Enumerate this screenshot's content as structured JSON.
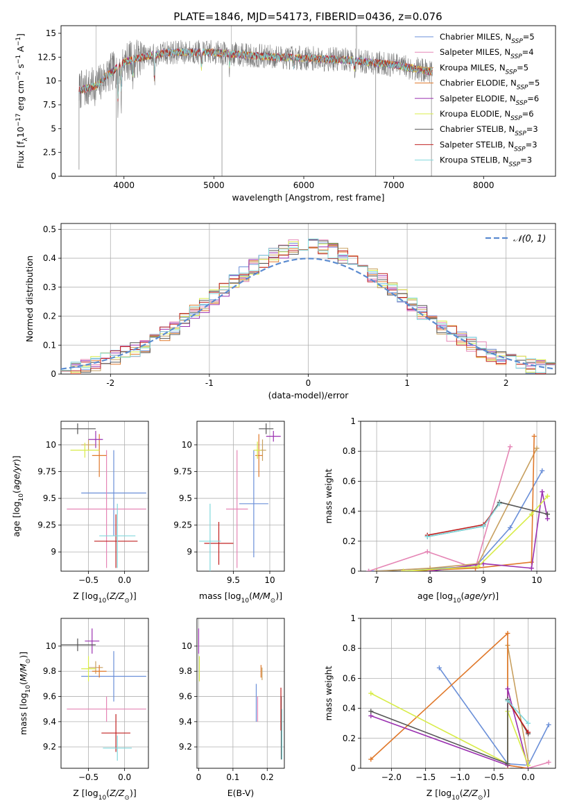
{
  "figure": {
    "title": "PLATE=1846, MJD=54173, FIBERID=0436, z=0.076"
  },
  "legend": {
    "entries": [
      "Chabrier MILES, N_SSP=5",
      "Salpeter MILES, N_SSP=4",
      "Kroupa MILES, N_SSP=5",
      "Chabrier ELODIE, N_SSP=5",
      "Salpeter ELODIE, N_SSP=6",
      "Kroupa ELODIE, N_SSP=6",
      "Chabrier STELIB, N_SSP=3",
      "Salpeter STELIB, N_SSP=3",
      "Kroupa STELIB, N_SSP=3"
    ],
    "models": [
      {
        "imf": "Chabrier",
        "lib": "MILES",
        "n": "5",
        "color": "#6a8fd8"
      },
      {
        "imf": "Salpeter",
        "lib": "MILES",
        "n": "4",
        "color": "#e585b5"
      },
      {
        "imf": "Kroupa",
        "lib": "MILES",
        "n": "5",
        "color": "#c8a060"
      },
      {
        "imf": "Chabrier",
        "lib": "ELODIE",
        "n": "5",
        "color": "#e0782a"
      },
      {
        "imf": "Salpeter",
        "lib": "ELODIE",
        "n": "6",
        "color": "#9a30b0"
      },
      {
        "imf": "Kroupa",
        "lib": "ELODIE",
        "n": "6",
        "color": "#d8ec48"
      },
      {
        "imf": "Chabrier",
        "lib": "STELIB",
        "n": "3",
        "color": "#555555"
      },
      {
        "imf": "Salpeter",
        "lib": "STELIB",
        "n": "3",
        "color": "#c02020"
      },
      {
        "imf": "Kroupa",
        "lib": "STELIB",
        "n": "3",
        "color": "#80d8dc"
      }
    ],
    "normal_label": "𝒩(0, 1)",
    "normal_color": "#5b8bd0"
  },
  "chart_data": [
    {
      "type": "line",
      "id": "spectrum",
      "xlabel": "wavelength [Angstrom, rest frame]",
      "ylabel": "Flux [f_λ 10^-17 erg cm^-2 s^-1 A^-1]",
      "xlim": [
        3300,
        8800
      ],
      "ylim": [
        0,
        15.8
      ],
      "xticks": [
        4000,
        5000,
        6000,
        7000,
        8000
      ],
      "yticks": [
        0.0,
        2.5,
        5.0,
        7.5,
        10.0,
        12.5,
        15.0
      ],
      "grid": false,
      "legend_position": "upper right",
      "data_range_x": [
        3500,
        7430
      ],
      "continuum": [
        [
          3500,
          9.0
        ],
        [
          3700,
          9.5
        ],
        [
          3800,
          10.5
        ],
        [
          3900,
          11.2
        ],
        [
          4000,
          12.0
        ],
        [
          4200,
          12.5
        ],
        [
          4500,
          13.0
        ],
        [
          5000,
          13.0
        ],
        [
          5500,
          12.6
        ],
        [
          6000,
          12.4
        ],
        [
          6500,
          12.2
        ],
        [
          7000,
          11.7
        ],
        [
          7400,
          11.0
        ]
      ]
    },
    {
      "type": "histogram",
      "id": "residuals",
      "xlabel": "(data-model)/error",
      "ylabel": "Normed distribution",
      "xlim": [
        -2.5,
        2.5
      ],
      "ylim": [
        0,
        0.52
      ],
      "xticks": [
        -2,
        -1,
        0,
        1,
        2
      ],
      "yticks": [
        0.0,
        0.1,
        0.2,
        0.3,
        0.4,
        0.5
      ],
      "grid": true,
      "legend_position": "upper right",
      "bin_width": 0.1,
      "curve": "normal(0,1) pdf"
    },
    {
      "type": "errorbar",
      "id": "age-vs-Z",
      "xlabel": "Z [log10(Z/Z⊙)]",
      "ylabel": "age  [log10(age/yr)]",
      "xlim": [
        -0.88,
        0.33
      ],
      "ylim": [
        8.82,
        10.22
      ],
      "xticks": [
        -0.5,
        0.0
      ],
      "xticklabels": [
        "−0.5",
        "0.0"
      ],
      "yticks": [
        9.0,
        9.25,
        9.5,
        9.75,
        10.0
      ],
      "grid": true,
      "points": [
        {
          "model": 0,
          "x": -0.15,
          "xerr": 0.45,
          "y": 9.55,
          "yerr": 0.4
        },
        {
          "model": 1,
          "x": -0.25,
          "xerr": 0.55,
          "y": 9.4,
          "yerr": 0.55
        },
        {
          "model": 2,
          "x": -0.5,
          "xerr": 0.1,
          "y": 10.0,
          "yerr": 0.05
        },
        {
          "model": 3,
          "x": -0.35,
          "xerr": 0.1,
          "y": 9.9,
          "yerr": 0.2
        },
        {
          "model": 4,
          "x": -0.4,
          "xerr": 0.1,
          "y": 10.05,
          "yerr": 0.08
        },
        {
          "model": 5,
          "x": -0.55,
          "xerr": 0.2,
          "y": 9.95,
          "yerr": 0.07
        },
        {
          "model": 6,
          "x": -0.65,
          "xerr": 0.25,
          "y": 10.15,
          "yerr": 0.05
        },
        {
          "model": 7,
          "x": -0.12,
          "xerr": 0.3,
          "y": 9.1,
          "yerr": 0.25
        },
        {
          "model": 8,
          "x": -0.1,
          "xerr": 0.25,
          "y": 9.15,
          "yerr": 0.3
        }
      ]
    },
    {
      "type": "errorbar",
      "id": "age-vs-mass",
      "xlabel": "mass [log10(M/M⊙)]",
      "ylabel": "",
      "xlim": [
        9.0,
        10.2
      ],
      "ylim": [
        8.82,
        10.22
      ],
      "xticks": [
        9.5,
        10.0
      ],
      "yticks": [
        9.0,
        9.25,
        9.5,
        9.75,
        10.0
      ],
      "grid": true,
      "points": [
        {
          "model": 0,
          "x": 9.78,
          "xerr": 0.2,
          "y": 9.45,
          "yerr": 0.5
        },
        {
          "model": 1,
          "x": 9.55,
          "xerr": 0.15,
          "y": 9.4,
          "yerr": 0.55
        },
        {
          "model": 2,
          "x": 9.9,
          "xerr": 0.05,
          "y": 9.95,
          "yerr": 0.1
        },
        {
          "model": 3,
          "x": 9.85,
          "xerr": 0.05,
          "y": 9.9,
          "yerr": 0.2
        },
        {
          "model": 4,
          "x": 10.05,
          "xerr": 0.1,
          "y": 10.08,
          "yerr": 0.05
        },
        {
          "model": 5,
          "x": 9.83,
          "xerr": 0.05,
          "y": 9.95,
          "yerr": 0.08
        },
        {
          "model": 6,
          "x": 9.95,
          "xerr": 0.1,
          "y": 10.15,
          "yerr": 0.05
        },
        {
          "model": 7,
          "x": 9.3,
          "xerr": 0.2,
          "y": 9.08,
          "yerr": 0.2
        },
        {
          "model": 8,
          "x": 9.18,
          "xerr": 0.15,
          "y": 9.1,
          "yerr": 0.35
        }
      ]
    },
    {
      "type": "line",
      "id": "mass-weight-vs-age",
      "xlabel": "age  [log10(age/yr)]",
      "ylabel": "mass weight",
      "xlim": [
        6.7,
        10.35
      ],
      "ylim": [
        0,
        1.0
      ],
      "xticks": [
        7,
        8,
        9,
        10
      ],
      "yticks": [
        0.0,
        0.2,
        0.4,
        0.6,
        0.8,
        1.0
      ],
      "grid": true,
      "series": [
        {
          "model": 0,
          "x": [
            6.85,
            8.85,
            9.5,
            10.1
          ],
          "y": [
            0.0,
            0.03,
            0.29,
            0.67
          ]
        },
        {
          "model": 1,
          "x": [
            6.85,
            7.95,
            8.85,
            9.5
          ],
          "y": [
            0.0,
            0.13,
            0.02,
            0.83
          ]
        },
        {
          "model": 2,
          "x": [
            7.0,
            8.0,
            8.9,
            10.0
          ],
          "y": [
            0.0,
            0.02,
            0.05,
            0.82
          ]
        },
        {
          "model": 3,
          "x": [
            7.5,
            8.85,
            9.9,
            9.95
          ],
          "y": [
            0.0,
            0.02,
            0.06,
            0.9
          ]
        },
        {
          "model": 4,
          "x": [
            8.0,
            9.0,
            9.9,
            10.1,
            10.2
          ],
          "y": [
            0.0,
            0.05,
            0.02,
            0.53,
            0.35
          ]
        },
        {
          "model": 5,
          "x": [
            7.5,
            8.9,
            9.9,
            10.2
          ],
          "y": [
            0.0,
            0.03,
            0.38,
            0.5
          ]
        },
        {
          "model": 6,
          "x": [
            7.95,
            9.0,
            9.3,
            10.2
          ],
          "y": [
            0.23,
            0.3,
            0.46,
            0.38
          ]
        },
        {
          "model": 7,
          "x": [
            7.95,
            9.0,
            9.3
          ],
          "y": [
            0.24,
            0.31,
            0.45
          ]
        },
        {
          "model": 8,
          "x": [
            7.95,
            9.0,
            9.3
          ],
          "y": [
            0.23,
            0.3,
            0.45
          ]
        }
      ]
    },
    {
      "type": "errorbar",
      "id": "mass-vs-Z",
      "xlabel": "Z [log10(Z/Z⊙)]",
      "ylabel": "mass [log10(M/M⊙)]",
      "xlim": [
        -0.88,
        0.33
      ],
      "ylim": [
        9.03,
        10.22
      ],
      "xticks": [
        -0.5,
        0.0
      ],
      "xticklabels": [
        "−0.5",
        "0.0"
      ],
      "yticks": [
        9.2,
        9.4,
        9.6,
        9.8,
        10.0
      ],
      "grid": true,
      "points": [
        {
          "model": 0,
          "x": -0.15,
          "xerr": 0.45,
          "y": 9.76,
          "yerr": 0.2
        },
        {
          "model": 1,
          "x": -0.25,
          "xerr": 0.55,
          "y": 9.5,
          "yerr": 0.1
        },
        {
          "model": 2,
          "x": -0.4,
          "xerr": 0.1,
          "y": 9.83,
          "yerr": 0.05
        },
        {
          "model": 3,
          "x": -0.35,
          "xerr": 0.1,
          "y": 9.8,
          "yerr": 0.05
        },
        {
          "model": 4,
          "x": -0.45,
          "xerr": 0.1,
          "y": 10.04,
          "yerr": 0.1
        },
        {
          "model": 5,
          "x": -0.5,
          "xerr": 0.1,
          "y": 9.82,
          "yerr": 0.1
        },
        {
          "model": 6,
          "x": -0.65,
          "xerr": 0.25,
          "y": 10.01,
          "yerr": 0.05
        },
        {
          "model": 7,
          "x": -0.12,
          "xerr": 0.2,
          "y": 9.31,
          "yerr": 0.15
        },
        {
          "model": 8,
          "x": -0.1,
          "xerr": 0.2,
          "y": 9.19,
          "yerr": 0.1
        }
      ]
    },
    {
      "type": "errorbar",
      "id": "mass-vs-ebv",
      "xlabel": "E(B-V)",
      "ylabel": "",
      "xlim": [
        -0.005,
        0.25
      ],
      "ylim": [
        9.03,
        10.22
      ],
      "xticks": [
        0.0,
        0.1,
        0.2
      ],
      "yticks": [
        9.2,
        9.4,
        9.6,
        9.8,
        10.0
      ],
      "grid": true,
      "points": [
        {
          "model": 0,
          "x": 0.168,
          "xerr": 0.0,
          "y": 9.55,
          "yerr": 0.15
        },
        {
          "model": 1,
          "x": 0.172,
          "xerr": 0.0,
          "y": 9.5,
          "yerr": 0.1
        },
        {
          "model": 2,
          "x": 0.185,
          "xerr": 0.0,
          "y": 9.78,
          "yerr": 0.05
        },
        {
          "model": 3,
          "x": 0.182,
          "xerr": 0.0,
          "y": 9.8,
          "yerr": 0.05
        },
        {
          "model": 4,
          "x": 0.0,
          "xerr": 0.0,
          "y": 10.04,
          "yerr": 0.1
        },
        {
          "model": 5,
          "x": 0.002,
          "xerr": 0.0,
          "y": 9.82,
          "yerr": 0.1
        },
        {
          "model": 6,
          "x": 0.241,
          "xerr": 0.0,
          "y": 9.35,
          "yerr": 0.25
        },
        {
          "model": 7,
          "x": 0.24,
          "xerr": 0.0,
          "y": 9.5,
          "yerr": 0.17
        },
        {
          "model": 8,
          "x": 0.243,
          "xerr": 0.0,
          "y": 9.3,
          "yerr": 0.2
        }
      ]
    },
    {
      "type": "line",
      "id": "mass-weight-vs-Z",
      "xlabel": "Z [log10(Z/Z⊙)]",
      "ylabel": "mass weight",
      "xlim": [
        -2.45,
        0.4
      ],
      "ylim": [
        0,
        1.0
      ],
      "xticks": [
        -2.0,
        -1.5,
        -1.0,
        -0.5,
        0.0
      ],
      "xticklabels": [
        "−2.0",
        "−1.5",
        "−1.0",
        "−0.5",
        "0.0"
      ],
      "yticks": [
        0.0,
        0.2,
        0.4,
        0.6,
        0.8,
        1.0
      ],
      "grid": true,
      "series": [
        {
          "model": 0,
          "x": [
            -1.3,
            -0.3,
            0.0,
            0.3
          ],
          "y": [
            0.67,
            0.03,
            0.02,
            0.29
          ]
        },
        {
          "model": 1,
          "x": [
            -0.3,
            0.0,
            0.3
          ],
          "y": [
            0.02,
            0.0,
            0.04
          ]
        },
        {
          "model": 2,
          "x": [
            -0.3,
            -0.3,
            0.0
          ],
          "y": [
            0.0,
            0.82,
            0.05
          ]
        },
        {
          "model": 3,
          "x": [
            -2.3,
            -0.3,
            -0.3,
            0.0
          ],
          "y": [
            0.06,
            0.9,
            0.02,
            0.0
          ]
        },
        {
          "model": 4,
          "x": [
            -2.3,
            -0.3,
            -0.3,
            0.0
          ],
          "y": [
            0.35,
            0.02,
            0.53,
            0.0
          ]
        },
        {
          "model": 5,
          "x": [
            -2.3,
            -0.3,
            -0.3,
            0.0
          ],
          "y": [
            0.5,
            0.03,
            0.38,
            0.02
          ]
        },
        {
          "model": 6,
          "x": [
            -2.3,
            -0.3,
            -0.3,
            0.0
          ],
          "y": [
            0.38,
            0.03,
            0.46,
            0.23
          ]
        },
        {
          "model": 7,
          "x": [
            -0.3,
            0.0
          ],
          "y": [
            0.45,
            0.24
          ]
        },
        {
          "model": 8,
          "x": [
            -0.3,
            0.0
          ],
          "y": [
            0.45,
            0.3
          ]
        }
      ]
    }
  ]
}
